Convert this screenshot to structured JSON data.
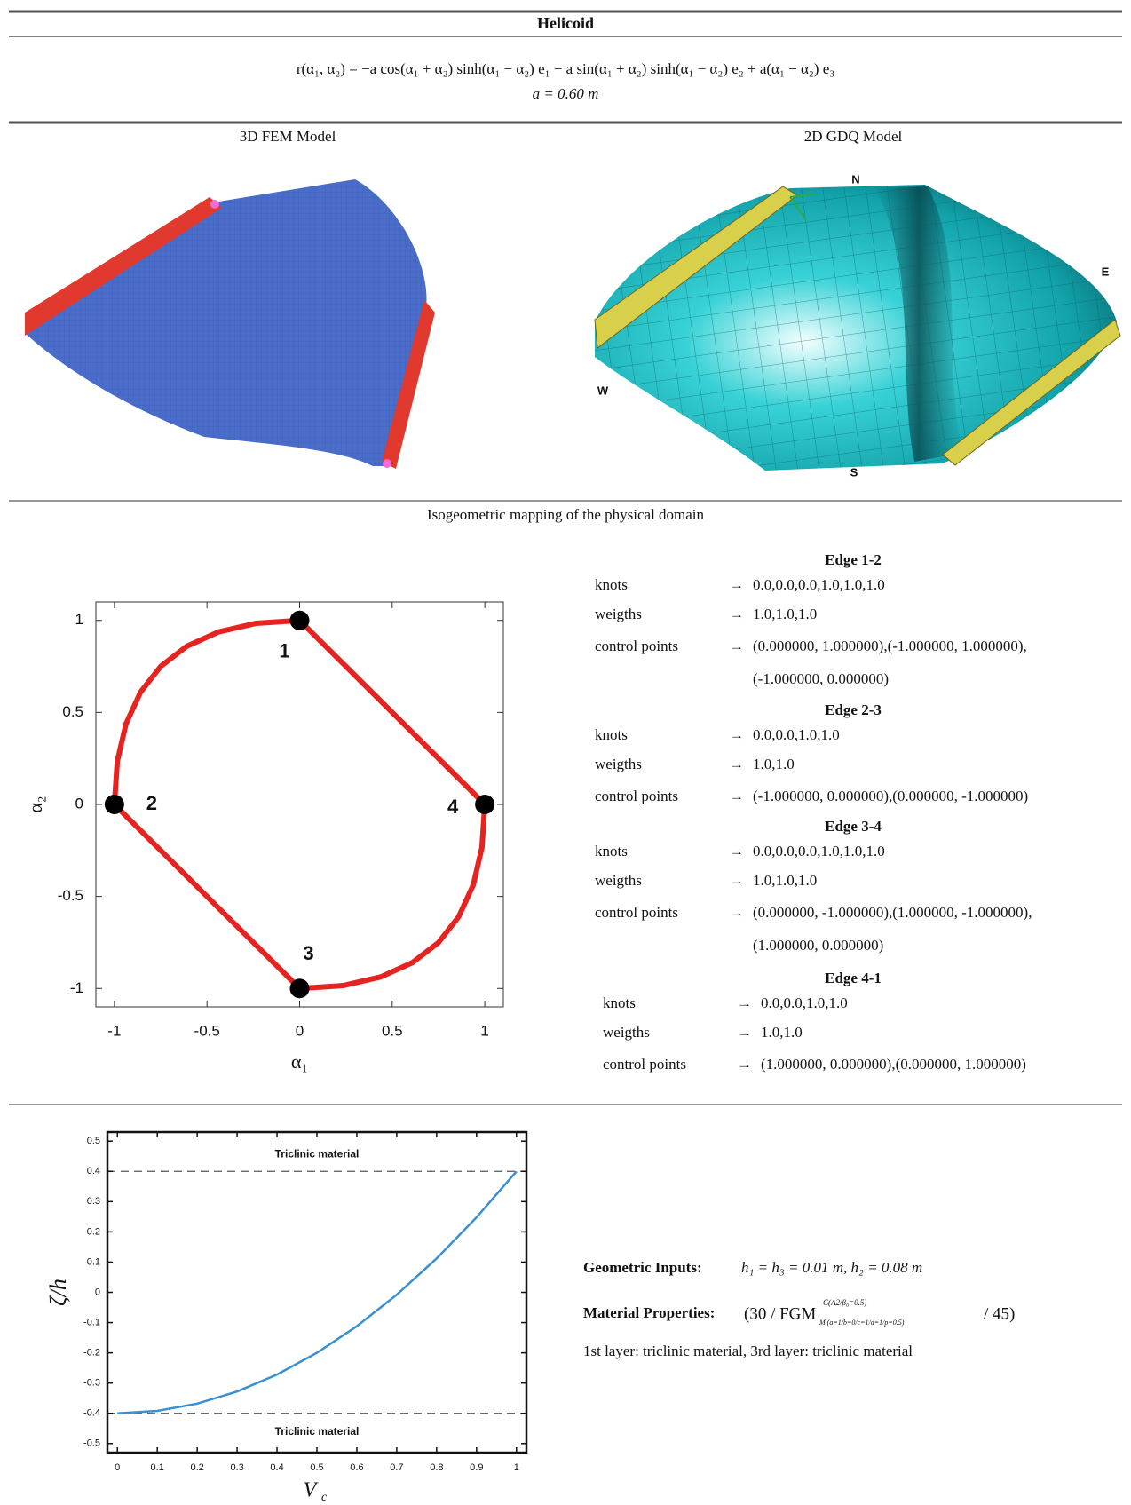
{
  "header": {
    "title": "Helicoid",
    "equation": "r(α₁, α₂) = −a cos(α₁ + α₂) sinh(α₁ − α₂) e₁ − a sin(α₁ + α₂) sinh(α₁ − α₂) e₂ + a(α₁ − α₂) e₃",
    "parameter": "a = 0.60 m"
  },
  "models": {
    "fem_label": "3D FEM Model",
    "gdq_label": "2D GDQ Model",
    "compass": [
      "N",
      "E",
      "S",
      "W"
    ]
  },
  "mapping": {
    "title": "Isogeometric mapping of the physical domain",
    "plot": {
      "type": "line",
      "x_label": "α₁",
      "y_label": "α₂",
      "color": "#e52421",
      "xlim": [
        -1.1,
        1.1
      ],
      "ylim": [
        -1.1,
        1.1
      ],
      "xticks": [
        -1,
        -0.5,
        0,
        0.5,
        1
      ],
      "yticks": [
        -1,
        -0.5,
        0,
        0.5,
        1
      ],
      "curve": {
        "x": [
          0,
          -0.234375,
          -0.4375,
          -0.609375,
          -0.75,
          -0.859375,
          -0.9375,
          -0.984375,
          -1,
          0,
          0.234375,
          0.4375,
          0.609375,
          0.75,
          0.859375,
          0.9375,
          0.984375,
          1,
          0
        ],
        "y": [
          1,
          0.984375,
          0.9375,
          0.859375,
          0.75,
          0.609375,
          0.4375,
          0.234375,
          0,
          -1,
          -0.984375,
          -0.9375,
          -0.859375,
          -0.75,
          -0.609375,
          -0.4375,
          -0.234375,
          0,
          1
        ]
      },
      "points": [
        {
          "label": "1",
          "x": 0,
          "y": 1
        },
        {
          "label": "2",
          "x": -1,
          "y": 0
        },
        {
          "label": "3",
          "x": 0,
          "y": -1
        },
        {
          "label": "4",
          "x": 1,
          "y": 0
        }
      ]
    },
    "arrow": "→",
    "edges": [
      {
        "title": "Edge 1-2",
        "rows": [
          {
            "label": "knots",
            "value": [
              "0.0,0.0,0.0,1.0,1.0,1.0"
            ]
          },
          {
            "label": "weigths",
            "value": [
              "1.0,1.0,1.0"
            ]
          },
          {
            "label": "control points",
            "value": [
              "(0.000000, 1.000000),(-1.000000, 1.000000),",
              "(-1.000000, 0.000000)"
            ]
          }
        ]
      },
      {
        "title": "Edge 2-3",
        "rows": [
          {
            "label": "knots",
            "value": [
              "0.0,0.0,1.0,1.0"
            ]
          },
          {
            "label": "weigths",
            "value": [
              "1.0,1.0"
            ]
          },
          {
            "label": "control points",
            "value": [
              "(-1.000000, 0.000000),(0.000000, -1.000000)"
            ]
          }
        ]
      },
      {
        "title": "Edge 3-4",
        "rows": [
          {
            "label": "knots",
            "value": [
              "0.0,0.0,0.0,1.0,1.0,1.0"
            ]
          },
          {
            "label": "weigths",
            "value": [
              "1.0,1.0,1.0"
            ]
          },
          {
            "label": "control points",
            "value": [
              "(0.000000, -1.000000),(1.000000, -1.000000),",
              "(1.000000, 0.000000)"
            ]
          }
        ]
      },
      {
        "title": "Edge 4-1",
        "rows": [
          {
            "label": "knots",
            "value": [
              "0.0,0.0,1.0,1.0"
            ]
          },
          {
            "label": "weigths",
            "value": [
              "1.0,1.0"
            ]
          },
          {
            "label": "control points",
            "value": [
              "(1.000000, 0.000000),(0.000000, 1.000000)"
            ]
          }
        ]
      }
    ]
  },
  "material": {
    "plot": {
      "type": "line",
      "x_label": "V",
      "x_label_subscript": "c",
      "y_label": "ζ/h",
      "color": "#3a8fd0",
      "xlim": [
        -0.025,
        1.025
      ],
      "ylim": [
        -0.53,
        0.53
      ],
      "xticks": [
        0,
        0.1,
        0.2,
        0.3,
        0.4,
        0.5,
        0.6,
        0.7,
        0.8,
        0.9,
        1
      ],
      "yticks": [
        -0.5,
        -0.4,
        -0.3,
        -0.2,
        -0.1,
        0,
        0.1,
        0.2,
        0.3,
        0.4,
        0.5
      ],
      "hlines": [
        0.4,
        -0.4
      ],
      "annotations": [
        "Triclinic material",
        "Triclinic material"
      ],
      "curve": {
        "x": [
          0,
          0.1,
          0.2,
          0.3,
          0.4,
          0.5,
          0.6,
          0.7,
          0.8,
          0.9,
          1
        ],
        "y": [
          -0.4,
          -0.392,
          -0.368,
          -0.328,
          -0.272,
          -0.2,
          -0.112,
          -0.008,
          0.112,
          0.248,
          0.4
        ]
      }
    },
    "geometric_label": "Geometric Inputs:",
    "geometric_value": "h₁ = h₃ = 0.01 m,  h₂ = 0.08 m",
    "material_label": "Material Properties:",
    "material_value": {
      "open": "(30 / FGM",
      "sup": "C(A2/β₀=0.5)",
      "sub": "M (a=1/b=0/c=1/d=1/p=0.5)",
      "close": "/ 45)"
    },
    "layers": "1st layer: triclinic material, 3rd layer: triclinic material"
  }
}
